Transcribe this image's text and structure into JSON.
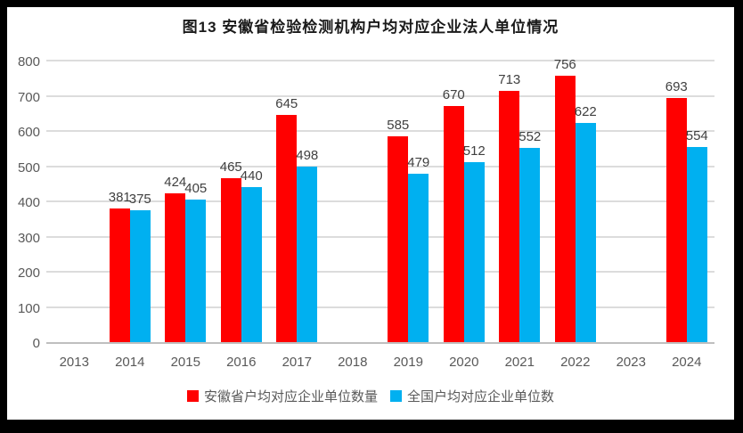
{
  "title": "图13  安徽省检验检测机构户均对应企业法人单位情况",
  "chart_data": {
    "type": "bar",
    "title": "图13  安徽省检验检测机构户均对应企业法人单位情况",
    "categories": [
      "2013",
      "2014",
      "2015",
      "2016",
      "2017",
      "2018",
      "2019",
      "2020",
      "2021",
      "2022",
      "2023",
      "2024"
    ],
    "series": [
      {
        "name": "安徽省户均对应企业单位数量",
        "color": "#ff0000",
        "values": [
          null,
          381,
          424,
          465,
          645,
          null,
          585,
          670,
          713,
          756,
          null,
          693
        ]
      },
      {
        "name": "全国户均对应企业单位数",
        "color": "#00b0f0",
        "values": [
          null,
          375,
          405,
          440,
          498,
          null,
          479,
          512,
          552,
          622,
          null,
          554
        ]
      }
    ],
    "xlabel": "",
    "ylabel": "",
    "ylim": [
      0,
      800
    ],
    "yticks": [
      0,
      100,
      200,
      300,
      400,
      500,
      600,
      700,
      800
    ],
    "grid": true,
    "legend_position": "bottom"
  },
  "colors": {
    "series_anhui": "#ff0000",
    "series_national": "#00b0f0",
    "gridline": "#dcdcdc",
    "axis_line": "#bfbfbf",
    "axis_text": "#595959",
    "data_label_text": "#404040",
    "frame_border": "#000000"
  }
}
